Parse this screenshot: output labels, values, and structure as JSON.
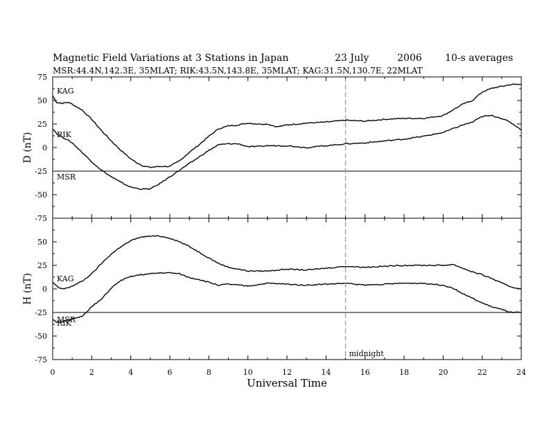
{
  "title": "Magnetic Field Variations at 3 Stations in Japan",
  "date_label": "23 July",
  "year_label": "2006",
  "averaging_label": "10-s averages",
  "subtitle": "MSR:44.4N,142.3E, 35MLAT;  RIK:43.5N,143.8E, 35MLAT;  KAG:31.5N,130.7E, 22MLAT",
  "chart_data": [
    {
      "type": "line",
      "panel": "D",
      "ylabel": "D (nT)",
      "ylim": [
        -75,
        75
      ],
      "yticks": [
        75,
        50,
        25,
        0,
        -25,
        -50,
        -75
      ],
      "xlim": [
        0,
        24
      ],
      "series": [
        {
          "name": "KAG",
          "x": [
            0,
            0.2,
            0.5,
            0.8,
            1,
            1.5,
            2,
            2.5,
            3,
            3.5,
            4,
            4.3,
            4.7,
            5,
            5.5,
            6,
            6.5,
            7,
            7.5,
            8,
            8.5,
            9,
            9.5,
            10,
            10.5,
            11,
            11.5,
            12,
            13,
            14,
            15,
            16,
            17,
            18,
            19,
            20,
            20.5,
            21,
            21.5,
            22,
            22.5,
            23,
            23.5,
            24
          ],
          "y": [
            55,
            48,
            47,
            48,
            46,
            40,
            30,
            18,
            7,
            -3,
            -12,
            -16,
            -20,
            -21,
            -20,
            -20,
            -14,
            -5,
            3,
            12,
            20,
            23,
            24,
            26,
            25,
            25,
            22,
            24,
            26,
            27,
            29,
            28,
            30,
            31,
            31,
            34,
            40,
            46,
            50,
            59,
            63,
            65,
            67,
            67
          ]
        },
        {
          "name": "RIK",
          "x": [
            0,
            0.3,
            0.6,
            1,
            1.5,
            2,
            2.5,
            3,
            3.5,
            4,
            4.5,
            5,
            5.5,
            6,
            6.5,
            7,
            7.5,
            8,
            8.5,
            9,
            9.5,
            10,
            10.5,
            11,
            12,
            13,
            14,
            15,
            16,
            17,
            18,
            19,
            20,
            20.5,
            21,
            21.5,
            22,
            22.5,
            23,
            23.5,
            24
          ],
          "y": [
            20,
            13,
            10,
            5,
            -5,
            -15,
            -24,
            -31,
            -37,
            -42,
            -44,
            -44,
            -38,
            -31,
            -24,
            -17,
            -10,
            -3,
            3,
            4,
            4,
            1,
            1,
            2,
            2,
            0,
            2,
            4,
            5,
            7,
            9,
            12,
            16,
            20,
            24,
            27,
            33,
            34,
            31,
            26,
            19
          ]
        },
        {
          "name": "MSR",
          "x": [
            0,
            24
          ],
          "y": [
            -25,
            -25
          ]
        }
      ],
      "series_labels": [
        {
          "name": "KAG",
          "text": "KAG"
        },
        {
          "name": "RIK",
          "text": "RIK"
        },
        {
          "name": "MSR",
          "text": "MSR"
        }
      ]
    },
    {
      "type": "line",
      "panel": "H",
      "ylabel": "H (nT)",
      "ylim": [
        -75,
        75
      ],
      "yticks": [
        50,
        25,
        0,
        -25,
        -50,
        -75
      ],
      "xlim": [
        0,
        24
      ],
      "xticks": [
        0,
        2,
        4,
        6,
        8,
        10,
        12,
        14,
        16,
        18,
        20,
        22,
        24
      ],
      "xlabel": "Universal Time",
      "series": [
        {
          "name": "KAG",
          "x": [
            0,
            0.3,
            0.6,
            1,
            1.5,
            2,
            2.5,
            3,
            3.5,
            4,
            4.5,
            5,
            5.5,
            6,
            6.5,
            7,
            7.5,
            8,
            8.5,
            9,
            10,
            11,
            12,
            13,
            14,
            15,
            16,
            17,
            18,
            19,
            20,
            20.5,
            21,
            21.5,
            22,
            22.5,
            23,
            23.5,
            24
          ],
          "y": [
            7,
            1,
            0,
            3,
            8,
            16,
            27,
            37,
            45,
            51,
            55,
            56,
            56,
            54,
            50,
            45,
            39,
            33,
            27,
            23,
            19,
            19,
            21,
            20,
            22,
            24,
            23,
            24,
            25,
            25,
            25,
            26,
            22,
            18,
            15,
            11,
            6,
            2,
            0
          ]
        },
        {
          "name": "RIK",
          "x": [
            0,
            0.2,
            0.5,
            1,
            1.5,
            2,
            2.5,
            3,
            3.5,
            4,
            4.5,
            5,
            5.5,
            6,
            6.5,
            7,
            7.5,
            8,
            8.5,
            9,
            10,
            11,
            12,
            13,
            14,
            15,
            16,
            17,
            18,
            19,
            20,
            20.5,
            21,
            21.5,
            22,
            22.5,
            23,
            23.5,
            24
          ],
          "y": [
            -32,
            -35,
            -35,
            -32,
            -29,
            -19,
            -11,
            1,
            9,
            13,
            15,
            16,
            17,
            17,
            16,
            12,
            10,
            7,
            4,
            5,
            3,
            6,
            5,
            4,
            5,
            6,
            4,
            5,
            6,
            6,
            4,
            1,
            -5,
            -10,
            -15,
            -19,
            -22,
            -25,
            -25
          ]
        },
        {
          "name": "MSR",
          "x": [
            0,
            24
          ],
          "y": [
            -25,
            -25
          ]
        }
      ],
      "series_labels": [
        {
          "name": "KAG",
          "text": "KAG"
        },
        {
          "name": "MSR",
          "text": "MSR"
        },
        {
          "name": "RIK",
          "text": "RIK"
        }
      ],
      "annotations": [
        {
          "text": "midnight",
          "x": 15
        }
      ]
    }
  ],
  "midnight_ut": 15
}
